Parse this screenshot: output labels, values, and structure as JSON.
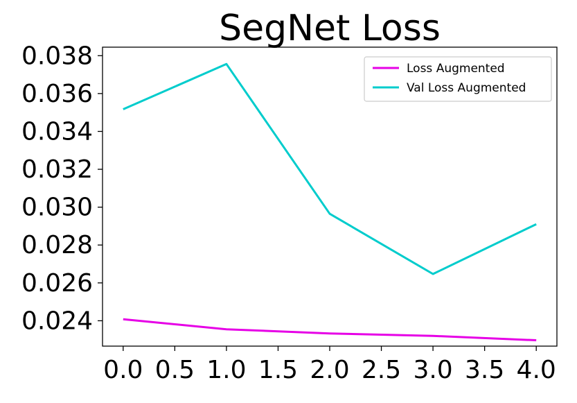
{
  "chart_data": {
    "type": "line",
    "title": "SegNet Loss",
    "xlabel": "",
    "ylabel": "",
    "x": [
      0,
      1,
      2,
      3,
      4
    ],
    "xlim": [
      -0.2,
      4.2
    ],
    "ylim": [
      0.02266,
      0.03845
    ],
    "xticks": [
      "0.0",
      "0.5",
      "1.0",
      "1.5",
      "2.0",
      "2.5",
      "3.0",
      "3.5",
      "4.0"
    ],
    "yticks": [
      "0.024",
      "0.026",
      "0.028",
      "0.030",
      "0.032",
      "0.034",
      "0.036",
      "0.038"
    ],
    "series": [
      {
        "name": "Loss Augmented",
        "color": "#e600e6",
        "values": [
          0.02408,
          0.02355,
          0.02333,
          0.0232,
          0.02297
        ]
      },
      {
        "name": "Val Loss Augmented",
        "color": "#00cccc",
        "values": [
          0.03517,
          0.03756,
          0.02965,
          0.02647,
          0.0291
        ]
      }
    ],
    "legend": "top-right",
    "grid": false
  }
}
